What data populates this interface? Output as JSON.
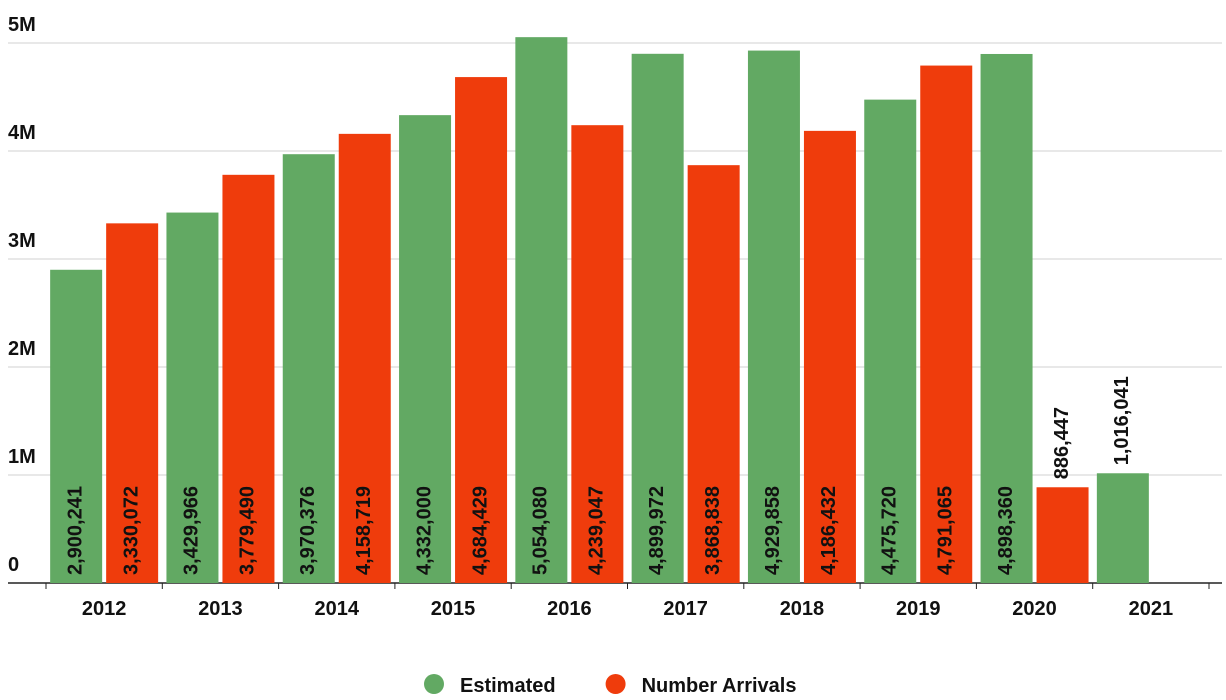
{
  "chart_data": {
    "type": "bar",
    "categories": [
      "2012",
      "2013",
      "2014",
      "2015",
      "2016",
      "2017",
      "2018",
      "2019",
      "2020",
      "2021"
    ],
    "series": [
      {
        "name": "Estimated",
        "color": "#62a963",
        "values": [
          2900241,
          3429966,
          3970376,
          4332000,
          5054080,
          4899972,
          4929858,
          4475720,
          4898360,
          1016041
        ],
        "value_labels": [
          "2,900,241",
          "3,429,966",
          "3,970,376",
          "4,332,000",
          "5,054,080",
          "4,899,972",
          "4,929,858",
          "4,475,720",
          "4,898,360",
          "1,016,041"
        ]
      },
      {
        "name": "Number Arrivals",
        "color": "#ef3c0c",
        "values": [
          3330072,
          3779490,
          4158719,
          4684429,
          4239047,
          3868838,
          4186432,
          4791065,
          886447,
          null
        ],
        "value_labels": [
          "3,330,072",
          "3,779,490",
          "4,158,719",
          "4,684,429",
          "4,239,047",
          "3,868,838",
          "4,186,432",
          "4,791,065",
          "886,447",
          null
        ]
      }
    ],
    "ylim": [
      0,
      5000000
    ],
    "yticks": [
      {
        "value": 0,
        "label": "0"
      },
      {
        "value": 1000000,
        "label": "1M"
      },
      {
        "value": 2000000,
        "label": "2M"
      },
      {
        "value": 3000000,
        "label": "3M"
      },
      {
        "value": 4000000,
        "label": "4M"
      },
      {
        "value": 5000000,
        "label": "5M"
      }
    ],
    "grid": true,
    "legend": "bottom"
  }
}
